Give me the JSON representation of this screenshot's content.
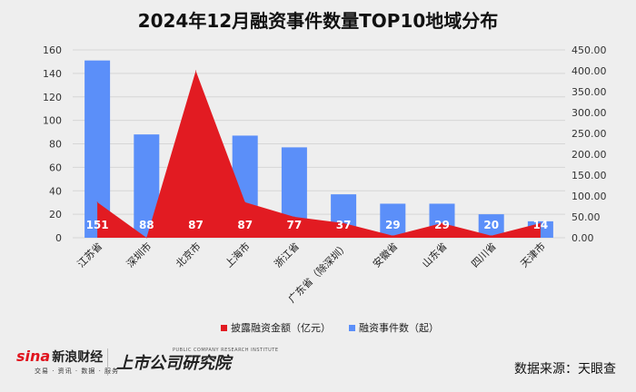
{
  "chart_data": {
    "type": "bar+area",
    "title": "2024年12月融资事件数量TOP10地域分布",
    "categories": [
      "江苏省",
      "深圳市",
      "北京市",
      "上海市",
      "浙江省",
      "广东省（除深圳）",
      "安徽省",
      "山东省",
      "四川省",
      "天津市"
    ],
    "series": [
      {
        "name": "融资事件数（起）",
        "type": "bar",
        "axis": "left",
        "color": "#5b8ff9",
        "values": [
          151,
          88,
          87,
          87,
          77,
          37,
          29,
          29,
          20,
          14
        ],
        "labels": [
          "151",
          "88",
          "87",
          "87",
          "77",
          "37",
          "29",
          "29",
          "20",
          "14"
        ]
      },
      {
        "name": "披露融资金额（亿元）",
        "type": "area",
        "axis": "right",
        "color": "#e21b22",
        "values": [
          85,
          0,
          400,
          85,
          50,
          35,
          5,
          35,
          5,
          35
        ]
      }
    ],
    "y_left": {
      "min": 0,
      "max": 160,
      "ticks": [
        "0",
        "20",
        "40",
        "60",
        "80",
        "100",
        "120",
        "140",
        "160"
      ]
    },
    "y_right": {
      "min": 0,
      "max": 450,
      "ticks": [
        "0.00",
        "50.00",
        "100.00",
        "150.00",
        "200.00",
        "250.00",
        "300.00",
        "350.00",
        "400.00",
        "450.00"
      ]
    },
    "legend": {
      "position": "bottom"
    }
  },
  "footer": {
    "brand": "sina",
    "brand_cn": "新浪财经",
    "slogan": "交易 · 资讯 · 数据 · 服务",
    "institute": "上市公司研究院",
    "institute_en": "PUBLIC COMPANY RESEARCH INSTITUTE",
    "source": "数据来源：天眼查"
  }
}
